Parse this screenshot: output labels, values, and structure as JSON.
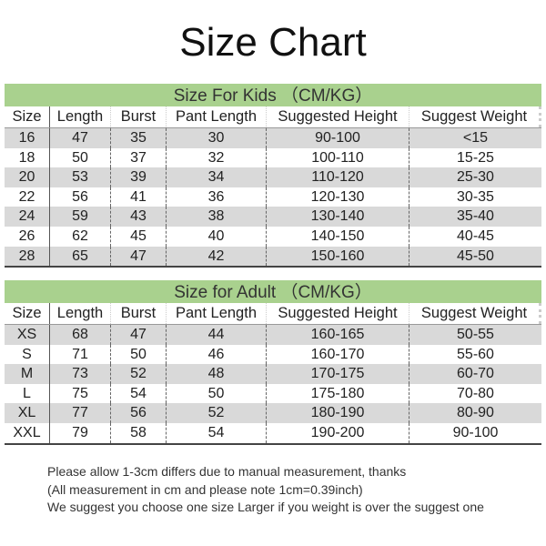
{
  "title": "Size Chart",
  "columns": [
    "Size",
    "Length",
    "Burst",
    "Pant Length",
    "Suggested Height",
    "Suggest Weight"
  ],
  "colors": {
    "band": "#a9d18e",
    "alt_row": "#d9d9d9"
  },
  "kids": {
    "heading": "Size For Kids （CM/KG）",
    "rows": [
      [
        "16",
        "47",
        "35",
        "30",
        "90-100",
        "<15"
      ],
      [
        "18",
        "50",
        "37",
        "32",
        "100-110",
        "15-25"
      ],
      [
        "20",
        "53",
        "39",
        "34",
        "110-120",
        "25-30"
      ],
      [
        "22",
        "56",
        "41",
        "36",
        "120-130",
        "30-35"
      ],
      [
        "24",
        "59",
        "43",
        "38",
        "130-140",
        "35-40"
      ],
      [
        "26",
        "62",
        "45",
        "40",
        "140-150",
        "40-45"
      ],
      [
        "28",
        "65",
        "47",
        "42",
        "150-160",
        "45-50"
      ]
    ]
  },
  "adult": {
    "heading": "Size for Adult （CM/KG）",
    "rows": [
      [
        "XS",
        "68",
        "47",
        "44",
        "160-165",
        "50-55"
      ],
      [
        "S",
        "71",
        "50",
        "46",
        "160-170",
        "55-60"
      ],
      [
        "M",
        "73",
        "52",
        "48",
        "170-175",
        "60-70"
      ],
      [
        "L",
        "75",
        "54",
        "50",
        "175-180",
        "70-80"
      ],
      [
        "XL",
        "77",
        "56",
        "52",
        "180-190",
        "80-90"
      ],
      [
        "XXL",
        "79",
        "58",
        "54",
        "190-200",
        "90-100"
      ]
    ]
  },
  "notes": [
    "Please allow 1-3cm differs due to manual measurement, thanks",
    "(All measurement in cm and please note 1cm=0.39inch)",
    "We suggest you choose one size Larger if you weight is over the suggest one"
  ]
}
